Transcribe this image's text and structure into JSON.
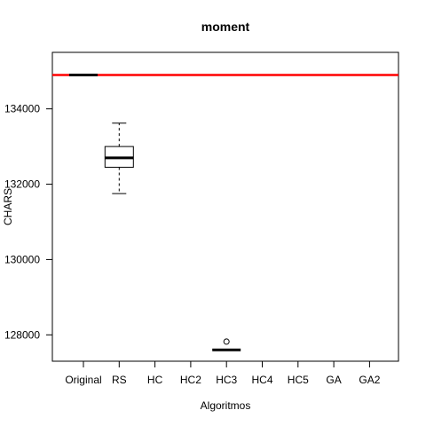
{
  "chart_data": {
    "type": "boxplot",
    "title": "moment",
    "xlabel": "Algoritmos",
    "ylabel": "CHARS",
    "categories": [
      "Original",
      "RS",
      "HC",
      "HC2",
      "HC3",
      "HC4",
      "HC5",
      "GA",
      "GA2"
    ],
    "ylim": [
      127300,
      135500
    ],
    "yticks": [
      128000,
      130000,
      132000,
      134000
    ],
    "ytick_labels": [
      "128000",
      "130000",
      "132000",
      "134000"
    ],
    "reference_line": {
      "value": 134900,
      "color": "#ff0000"
    },
    "boxes": [
      {
        "category": "Original",
        "min": 134900,
        "q1": 134900,
        "median": 134900,
        "q3": 134900,
        "max": 134900,
        "outliers": []
      },
      {
        "category": "RS",
        "min": 131750,
        "q1": 132450,
        "median": 132700,
        "q3": 133000,
        "max": 133620,
        "outliers": []
      },
      {
        "category": "HC3",
        "min": 127600,
        "q1": 127600,
        "median": 127600,
        "q3": 127600,
        "max": 127600,
        "outliers": [
          127820
        ]
      }
    ],
    "grid": false,
    "legend": "none"
  }
}
